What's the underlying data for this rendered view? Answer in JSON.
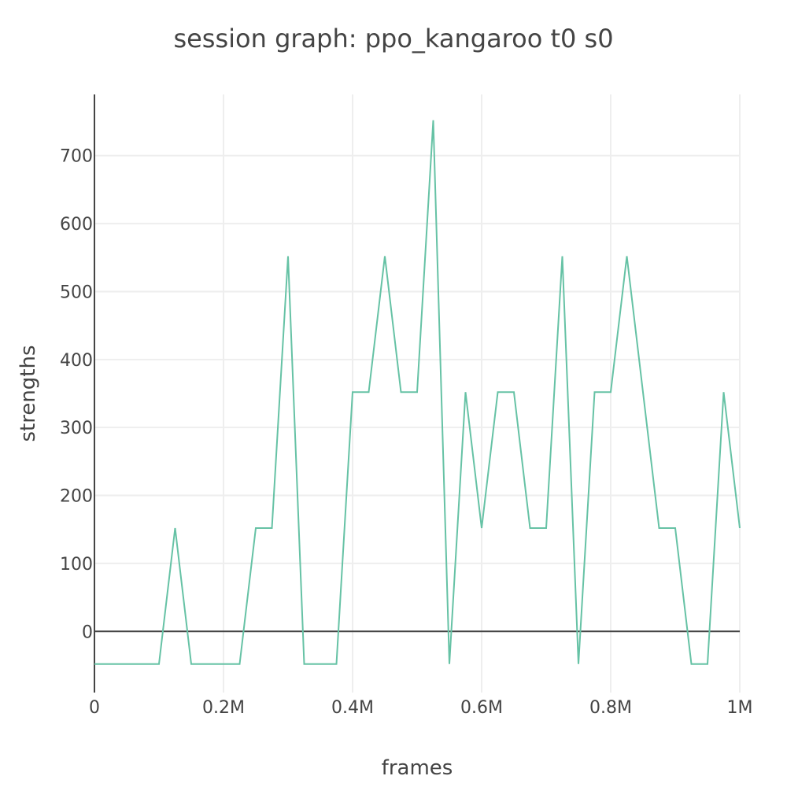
{
  "chart_data": {
    "type": "line",
    "title": "session graph: ppo_kangaroo t0 s0",
    "xlabel": "frames",
    "ylabel": "strengths",
    "xlim": [
      0,
      1000000
    ],
    "ylim": [
      -90,
      790
    ],
    "x_ticks": [
      {
        "value": 0,
        "label": "0"
      },
      {
        "value": 200000,
        "label": "0.2M"
      },
      {
        "value": 400000,
        "label": "0.4M"
      },
      {
        "value": 600000,
        "label": "0.6M"
      },
      {
        "value": 800000,
        "label": "0.8M"
      },
      {
        "value": 1000000,
        "label": "1M"
      }
    ],
    "y_ticks": [
      {
        "value": 0,
        "label": "0"
      },
      {
        "value": 100,
        "label": "100"
      },
      {
        "value": 200,
        "label": "200"
      },
      {
        "value": 300,
        "label": "300"
      },
      {
        "value": 400,
        "label": "400"
      },
      {
        "value": 500,
        "label": "500"
      },
      {
        "value": 600,
        "label": "600"
      },
      {
        "value": 700,
        "label": "700"
      }
    ],
    "grid": true,
    "legend": "none",
    "series": [
      {
        "color": "#66c2a5",
        "x": [
          0,
          25000,
          50000,
          75000,
          100000,
          125000,
          150000,
          175000,
          200000,
          225000,
          250000,
          275000,
          300000,
          325000,
          350000,
          375000,
          400000,
          425000,
          450000,
          475000,
          500000,
          525000,
          550000,
          575000,
          600000,
          625000,
          650000,
          675000,
          700000,
          725000,
          750000,
          775000,
          800000,
          825000,
          850000,
          875000,
          900000,
          925000,
          950000,
          975000,
          1000000
        ],
        "y": [
          -48,
          -48,
          -48,
          -48,
          -48,
          152,
          -48,
          -48,
          -48,
          -48,
          152,
          152,
          552,
          -48,
          -48,
          -48,
          352,
          352,
          552,
          352,
          352,
          752,
          -48,
          352,
          152,
          352,
          352,
          152,
          152,
          552,
          -48,
          352,
          352,
          552,
          352,
          152,
          152,
          -48,
          -48,
          352,
          152
        ]
      }
    ]
  }
}
